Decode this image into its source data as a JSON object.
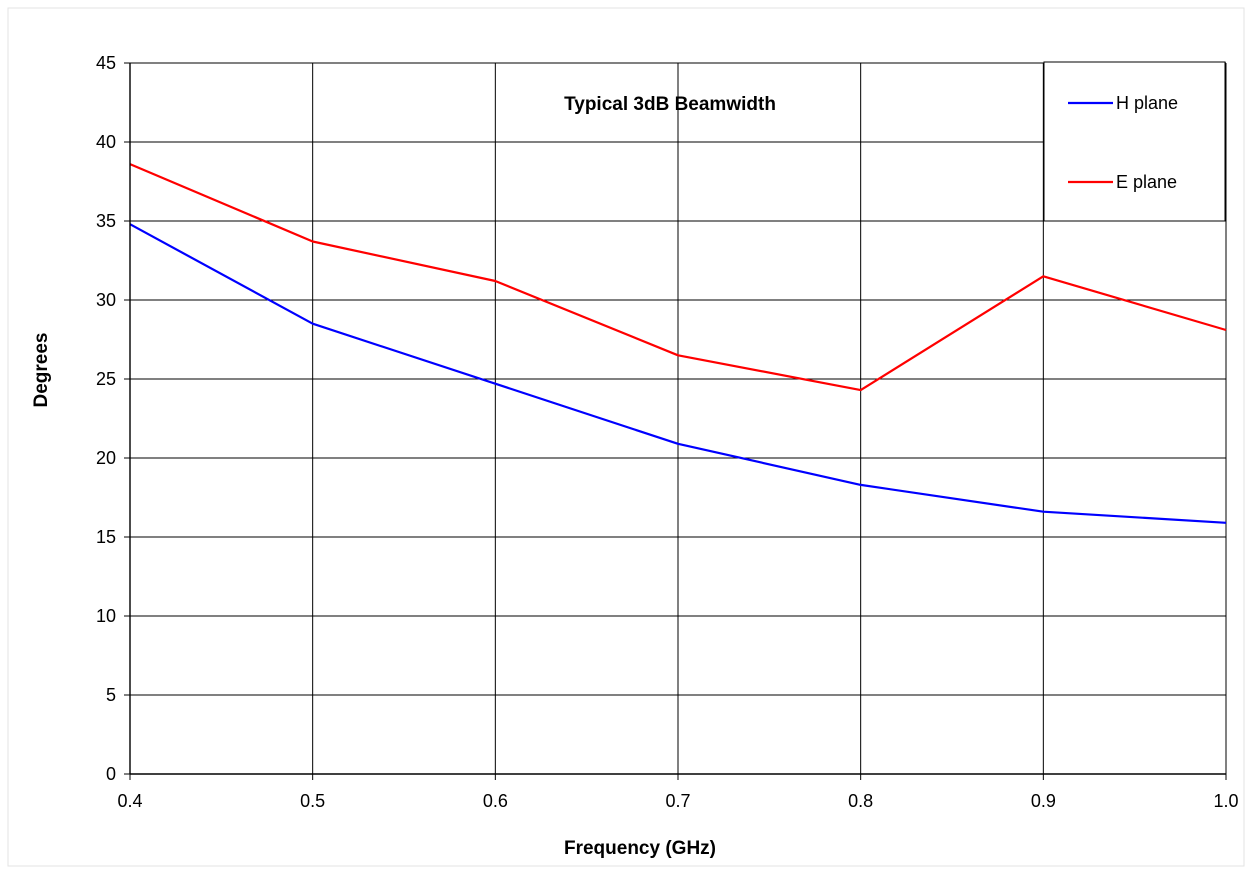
{
  "chart_data": {
    "type": "line",
    "title": "Typical 3dB Beamwidth",
    "xlabel": "Frequency (GHz)",
    "ylabel": "Degrees",
    "x": [
      0.4,
      0.5,
      0.6,
      0.7,
      0.8,
      0.9,
      1.0
    ],
    "x_tick_labels": [
      "0.4",
      "0.5",
      "0.6",
      "0.7",
      "0.8",
      "0.9",
      "1.0"
    ],
    "y_ticks": [
      0,
      5,
      10,
      15,
      20,
      25,
      30,
      35,
      40,
      45
    ],
    "y_tick_labels": [
      "0",
      "5",
      "10",
      "15",
      "20",
      "25",
      "30",
      "35",
      "40",
      "45"
    ],
    "xlim": [
      0.4,
      1.0
    ],
    "ylim": [
      0,
      45
    ],
    "grid": true,
    "legend_position": "top-right",
    "series": [
      {
        "name": "H plane",
        "color": "#0000ff",
        "values": [
          34.8,
          28.5,
          24.7,
          20.9,
          18.3,
          16.6,
          15.9
        ]
      },
      {
        "name": "E plane",
        "color": "#ff0000",
        "values": [
          38.6,
          33.7,
          31.2,
          26.5,
          24.3,
          31.5,
          28.1
        ]
      }
    ]
  }
}
